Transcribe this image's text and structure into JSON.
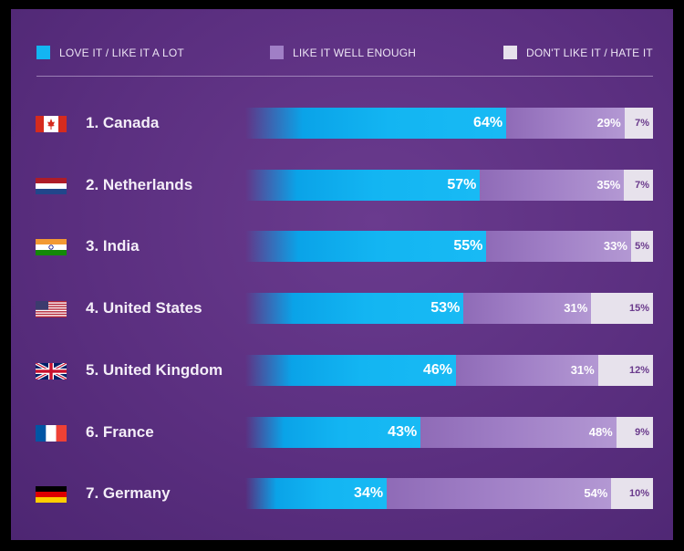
{
  "legend": {
    "love_label": "LOVE IT / LIKE IT A LOT",
    "well_label": "LIKE IT WELL ENOUGH",
    "hate_label": "DON'T LIKE IT / HATE IT"
  },
  "colors": {
    "love": "#13b5f2",
    "well": "#a07fc6",
    "hate": "#e7e2ec",
    "background": "#5b2f80"
  },
  "chart_data": {
    "type": "bar",
    "orientation": "horizontal",
    "stacked": true,
    "title": "",
    "categories": [
      "1. Canada",
      "2. Netherlands",
      "3. India",
      "4. United States",
      "5. United Kingdom",
      "6. France",
      "7. Germany"
    ],
    "flags": [
      "canada-flag-icon",
      "netherlands-flag-icon",
      "india-flag-icon",
      "usa-flag-icon",
      "uk-flag-icon",
      "france-flag-icon",
      "germany-flag-icon"
    ],
    "series": [
      {
        "key": "love",
        "name": "LOVE IT / LIKE IT A LOT",
        "values": [
          64,
          57,
          55,
          53,
          46,
          43,
          34
        ],
        "labels": [
          "64%",
          "57%",
          "55%",
          "53%",
          "46%",
          "43%",
          "34%"
        ]
      },
      {
        "key": "well",
        "name": "LIKE IT WELL ENOUGH",
        "values": [
          29,
          35,
          33,
          31,
          31,
          48,
          54
        ],
        "labels": [
          "29%",
          "35%",
          "33%",
          "31%",
          "31%",
          "48%",
          "54%"
        ]
      },
      {
        "key": "hate",
        "name": "DON'T LIKE IT / HATE IT",
        "values": [
          7,
          7,
          5,
          15,
          12,
          9,
          10
        ],
        "labels": [
          "7%",
          "7%",
          "5%",
          "15%",
          "12%",
          "9%",
          "10%"
        ]
      }
    ],
    "legend_position": "top",
    "grid": false
  }
}
